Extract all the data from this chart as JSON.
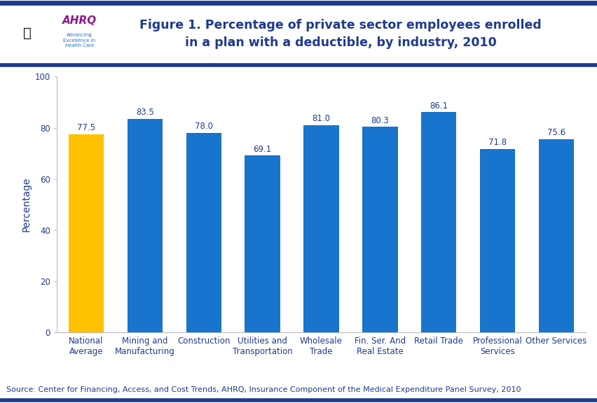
{
  "categories": [
    "National\nAverage",
    "Mining and\nManufacturing",
    "Construction",
    "Utilities and\nTransportation",
    "Wholesale\nTrade",
    "Fin. Ser. And\nReal Estate",
    "Retail Trade",
    "Professional\nServices",
    "Other Services"
  ],
  "values": [
    77.5,
    83.5,
    78.0,
    69.1,
    81.0,
    80.3,
    86.1,
    71.8,
    75.6
  ],
  "bar_colors": [
    "#FFC000",
    "#1874CD",
    "#1874CD",
    "#1874CD",
    "#1874CD",
    "#1874CD",
    "#1874CD",
    "#1874CD",
    "#1874CD"
  ],
  "title": "Figure 1. Percentage of private sector employees enrolled\nin a plan with a deductible, by industry, 2010",
  "ylabel": "Percentage",
  "ylim": [
    0,
    100
  ],
  "yticks": [
    0,
    20,
    40,
    60,
    80,
    100
  ],
  "title_color": "#1F3A8F",
  "bar_label_color": "#1F3A8F",
  "tick_label_color": "#1F3A8F",
  "ylabel_color": "#1F3A8F",
  "source_text": "Source: Center for Financing, Access, and Cost Trends, AHRQ, Insurance Component of the Medical Expenditure Panel Survey, 2010",
  "header_bar_color": "#1F3A8F",
  "background_color": "#FFFFFF",
  "title_fontsize": 12.5,
  "label_fontsize": 8.5,
  "ylabel_fontsize": 10,
  "source_fontsize": 8,
  "bar_width": 0.6
}
